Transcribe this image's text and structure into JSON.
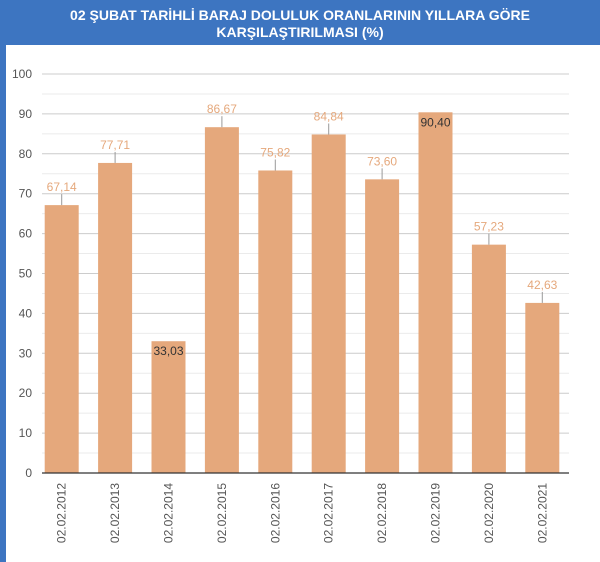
{
  "chart_data": {
    "type": "bar",
    "title_lines": [
      "02 ŞUBAT TARİHLİ BARAJ DOLULUK ORANLARININ YILLARA GÖRE",
      "KARŞILAŞTIRILMASI (%)"
    ],
    "categories": [
      "02.02.2012",
      "02.02.2013",
      "02.02.2014",
      "02.02.2015",
      "02.02.2016",
      "02.02.2017",
      "02.02.2018",
      "02.02.2019",
      "02.02.2020",
      "02.02.2021"
    ],
    "values": [
      67.14,
      77.71,
      33.03,
      86.67,
      75.82,
      84.84,
      73.6,
      90.4,
      57.23,
      42.63
    ],
    "value_labels": [
      "67,14",
      "77,71",
      "33,03",
      "86,67",
      "75,82",
      "84,84",
      "73,60",
      "90,40",
      "57,23",
      "42,63"
    ],
    "label_inside": [
      false,
      false,
      true,
      false,
      false,
      false,
      false,
      true,
      false,
      false
    ],
    "yticks": [
      "0",
      "10",
      "20",
      "30",
      "40",
      "50",
      "60",
      "70",
      "80",
      "90",
      "100"
    ],
    "ylim": [
      0,
      100
    ],
    "grid": true,
    "xlabel": "",
    "ylabel": "",
    "colors": {
      "bar": "#e5a87c",
      "label_outside": "#e5a87c",
      "label_inside": "#333333",
      "header": "#3d75c1"
    }
  }
}
